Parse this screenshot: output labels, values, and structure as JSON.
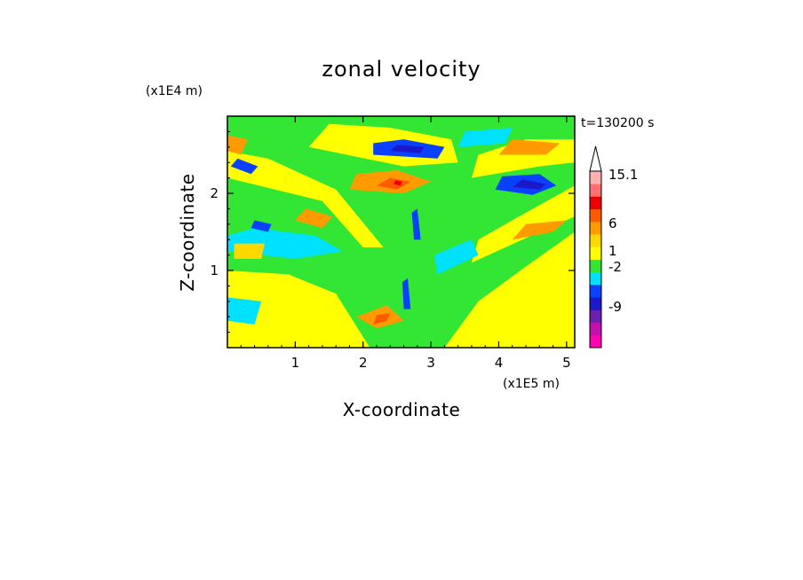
{
  "chart_data": {
    "type": "heatmap",
    "title": "zonal velocity",
    "xlabel": "X-coordinate",
    "ylabel": "Z-coordinate",
    "x_unit": "(x1E5 m)",
    "y_unit": "(x1E4 m)",
    "time_label": "t=130200 s",
    "xlim": [
      0,
      5.12
    ],
    "ylim": [
      0,
      3.0
    ],
    "x_ticks": [
      "1",
      "2",
      "3",
      "4",
      "5"
    ],
    "y_ticks": [
      "1",
      "2"
    ],
    "colorbar": {
      "labels": [
        "15.1",
        "6",
        "1",
        "-2",
        "-9"
      ],
      "colors": [
        "#ff00b4",
        "#c010b0",
        "#6a1fb0",
        "#1a1acc",
        "#0a40ff",
        "#00e0ff",
        "#33e633",
        "#ffff00",
        "#ffd800",
        "#ff9a00",
        "#ff5a00",
        "#ee0000",
        "#ff7070",
        "#ffb0b0"
      ],
      "extend": "max"
    },
    "field": {
      "background": "#33e633",
      "bands": [
        {
          "color": "#ffff00",
          "pts": [
            [
              0,
              0
            ],
            [
              2.1,
              0
            ],
            [
              1.6,
              0.7
            ],
            [
              0.9,
              0.95
            ],
            [
              0,
              1.0
            ]
          ]
        },
        {
          "color": "#ffff00",
          "pts": [
            [
              3.2,
              0
            ],
            [
              5.12,
              0
            ],
            [
              5.12,
              1.5
            ],
            [
              4.4,
              1.05
            ],
            [
              3.7,
              0.6
            ]
          ]
        },
        {
          "color": "#ffff00",
          "pts": [
            [
              0,
              2.2
            ],
            [
              1.4,
              1.9
            ],
            [
              2.0,
              1.3
            ],
            [
              2.3,
              1.3
            ],
            [
              1.6,
              2.05
            ],
            [
              0.6,
              2.45
            ],
            [
              0,
              2.55
            ]
          ]
        },
        {
          "color": "#ffff00",
          "pts": [
            [
              3.6,
              1.1
            ],
            [
              4.6,
              1.5
            ],
            [
              5.12,
              1.7
            ],
            [
              5.12,
              2.1
            ],
            [
              4.3,
              1.7
            ],
            [
              3.7,
              1.4
            ]
          ]
        },
        {
          "color": "#ffff00",
          "pts": [
            [
              1.2,
              2.6
            ],
            [
              2.6,
              2.35
            ],
            [
              3.4,
              2.4
            ],
            [
              3.3,
              2.7
            ],
            [
              2.4,
              2.85
            ],
            [
              1.5,
              2.9
            ]
          ]
        },
        {
          "color": "#ffff00",
          "pts": [
            [
              3.6,
              2.2
            ],
            [
              4.6,
              2.35
            ],
            [
              5.12,
              2.4
            ],
            [
              5.12,
              2.7
            ],
            [
              4.4,
              2.7
            ],
            [
              3.7,
              2.5
            ]
          ]
        },
        {
          "color": "#00e0ff",
          "pts": [
            [
              0,
              1.25
            ],
            [
              1.0,
              1.15
            ],
            [
              1.7,
              1.25
            ],
            [
              1.3,
              1.45
            ],
            [
              0.4,
              1.55
            ],
            [
              0,
              1.45
            ]
          ]
        },
        {
          "color": "#00e0ff",
          "pts": [
            [
              3.1,
              0.95
            ],
            [
              3.7,
              1.2
            ],
            [
              3.6,
              1.4
            ],
            [
              3.05,
              1.2
            ]
          ]
        },
        {
          "color": "#00e0ff",
          "pts": [
            [
              0,
              0.35
            ],
            [
              0.4,
              0.3
            ],
            [
              0.5,
              0.6
            ],
            [
              0,
              0.65
            ]
          ]
        },
        {
          "color": "#00e0ff",
          "pts": [
            [
              3.4,
              2.6
            ],
            [
              4.1,
              2.65
            ],
            [
              4.2,
              2.85
            ],
            [
              3.5,
              2.8
            ]
          ]
        },
        {
          "color": "#ffd800",
          "pts": [
            [
              0.1,
              1.15
            ],
            [
              0.5,
              1.15
            ],
            [
              0.55,
              1.35
            ],
            [
              0.1,
              1.35
            ]
          ]
        },
        {
          "color": "#ff9a00",
          "pts": [
            [
              1.9,
              0.4
            ],
            [
              2.35,
              0.55
            ],
            [
              2.6,
              0.35
            ],
            [
              2.2,
              0.25
            ]
          ]
        },
        {
          "color": "#ff9a00",
          "pts": [
            [
              1.8,
              2.05
            ],
            [
              2.6,
              2.0
            ],
            [
              3.0,
              2.15
            ],
            [
              2.5,
              2.3
            ],
            [
              1.9,
              2.25
            ]
          ]
        },
        {
          "color": "#ff9a00",
          "pts": [
            [
              4.0,
              2.5
            ],
            [
              4.7,
              2.5
            ],
            [
              4.9,
              2.65
            ],
            [
              4.2,
              2.7
            ]
          ]
        },
        {
          "color": "#ff9a00",
          "pts": [
            [
              4.2,
              1.4
            ],
            [
              4.8,
              1.5
            ],
            [
              5.0,
              1.65
            ],
            [
              4.4,
              1.6
            ]
          ]
        },
        {
          "color": "#ff9a00",
          "pts": [
            [
              1.0,
              1.65
            ],
            [
              1.4,
              1.55
            ],
            [
              1.55,
              1.7
            ],
            [
              1.15,
              1.8
            ]
          ]
        },
        {
          "color": "#ff9a00",
          "pts": [
            [
              0,
              2.55
            ],
            [
              0.2,
              2.5
            ],
            [
              0.3,
              2.7
            ],
            [
              0,
              2.75
            ]
          ]
        },
        {
          "color": "#ff5a00",
          "pts": [
            [
              2.2,
              2.1
            ],
            [
              2.5,
              2.05
            ],
            [
              2.7,
              2.15
            ],
            [
              2.4,
              2.2
            ]
          ]
        },
        {
          "color": "#ff5a00",
          "pts": [
            [
              2.15,
              0.3
            ],
            [
              2.35,
              0.35
            ],
            [
              2.4,
              0.45
            ],
            [
              2.2,
              0.42
            ]
          ]
        },
        {
          "color": "#0a40ff",
          "pts": [
            [
              2.15,
              2.5
            ],
            [
              3.1,
              2.45
            ],
            [
              3.2,
              2.6
            ],
            [
              2.6,
              2.7
            ],
            [
              2.15,
              2.65
            ]
          ]
        },
        {
          "color": "#1a1acc",
          "pts": [
            [
              2.4,
              2.55
            ],
            [
              2.85,
              2.52
            ],
            [
              2.9,
              2.6
            ],
            [
              2.5,
              2.63
            ]
          ]
        },
        {
          "color": "#0a40ff",
          "pts": [
            [
              3.95,
              2.05
            ],
            [
              4.5,
              1.98
            ],
            [
              4.85,
              2.1
            ],
            [
              4.6,
              2.25
            ],
            [
              4.05,
              2.22
            ]
          ]
        },
        {
          "color": "#1a1acc",
          "pts": [
            [
              4.2,
              2.08
            ],
            [
              4.6,
              2.05
            ],
            [
              4.7,
              2.12
            ],
            [
              4.35,
              2.18
            ]
          ]
        },
        {
          "color": "#0a40ff",
          "pts": [
            [
              0.05,
              2.35
            ],
            [
              0.35,
              2.25
            ],
            [
              0.45,
              2.35
            ],
            [
              0.15,
              2.45
            ]
          ]
        },
        {
          "color": "#0a40ff",
          "pts": [
            [
              0.35,
              1.55
            ],
            [
              0.6,
              1.5
            ],
            [
              0.65,
              1.6
            ],
            [
              0.4,
              1.65
            ]
          ]
        },
        {
          "color": "#0a40ff",
          "pts": [
            [
              2.75,
              1.4
            ],
            [
              2.85,
              1.4
            ],
            [
              2.8,
              1.8
            ],
            [
              2.72,
              1.75
            ]
          ]
        },
        {
          "color": "#0a40ff",
          "pts": [
            [
              2.6,
              0.5
            ],
            [
              2.7,
              0.5
            ],
            [
              2.66,
              0.9
            ],
            [
              2.58,
              0.85
            ]
          ]
        },
        {
          "color": "#ee0000",
          "pts": [
            [
              2.45,
              2.12
            ],
            [
              2.55,
              2.1
            ],
            [
              2.58,
              2.15
            ],
            [
              2.48,
              2.17
            ]
          ]
        }
      ]
    }
  }
}
